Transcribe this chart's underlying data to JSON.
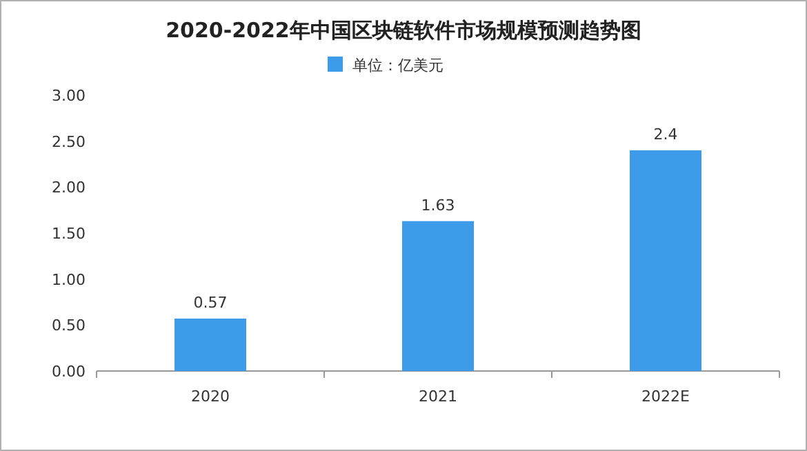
{
  "chart_data": {
    "type": "bar",
    "title": "2020-2022年中国区块链软件市场规模预测趋势图",
    "categories": [
      "2020",
      "2021",
      "2022E"
    ],
    "series": [
      {
        "name": "单位：亿美元",
        "color": "#3d9be9",
        "values": [
          0.57,
          1.63,
          2.4
        ]
      }
    ],
    "ylim": [
      0,
      3
    ],
    "yticks": [
      {
        "value": 0,
        "label": "0.00"
      },
      {
        "value": 0.5,
        "label": "0.50"
      },
      {
        "value": 1,
        "label": "1.00"
      },
      {
        "value": 1.5,
        "label": "1.50"
      },
      {
        "value": 2,
        "label": "2.00"
      },
      {
        "value": 2.5,
        "label": "2.50"
      },
      {
        "value": 3,
        "label": "3.00"
      }
    ],
    "data_labels": true,
    "legend": "top",
    "grid": false
  }
}
